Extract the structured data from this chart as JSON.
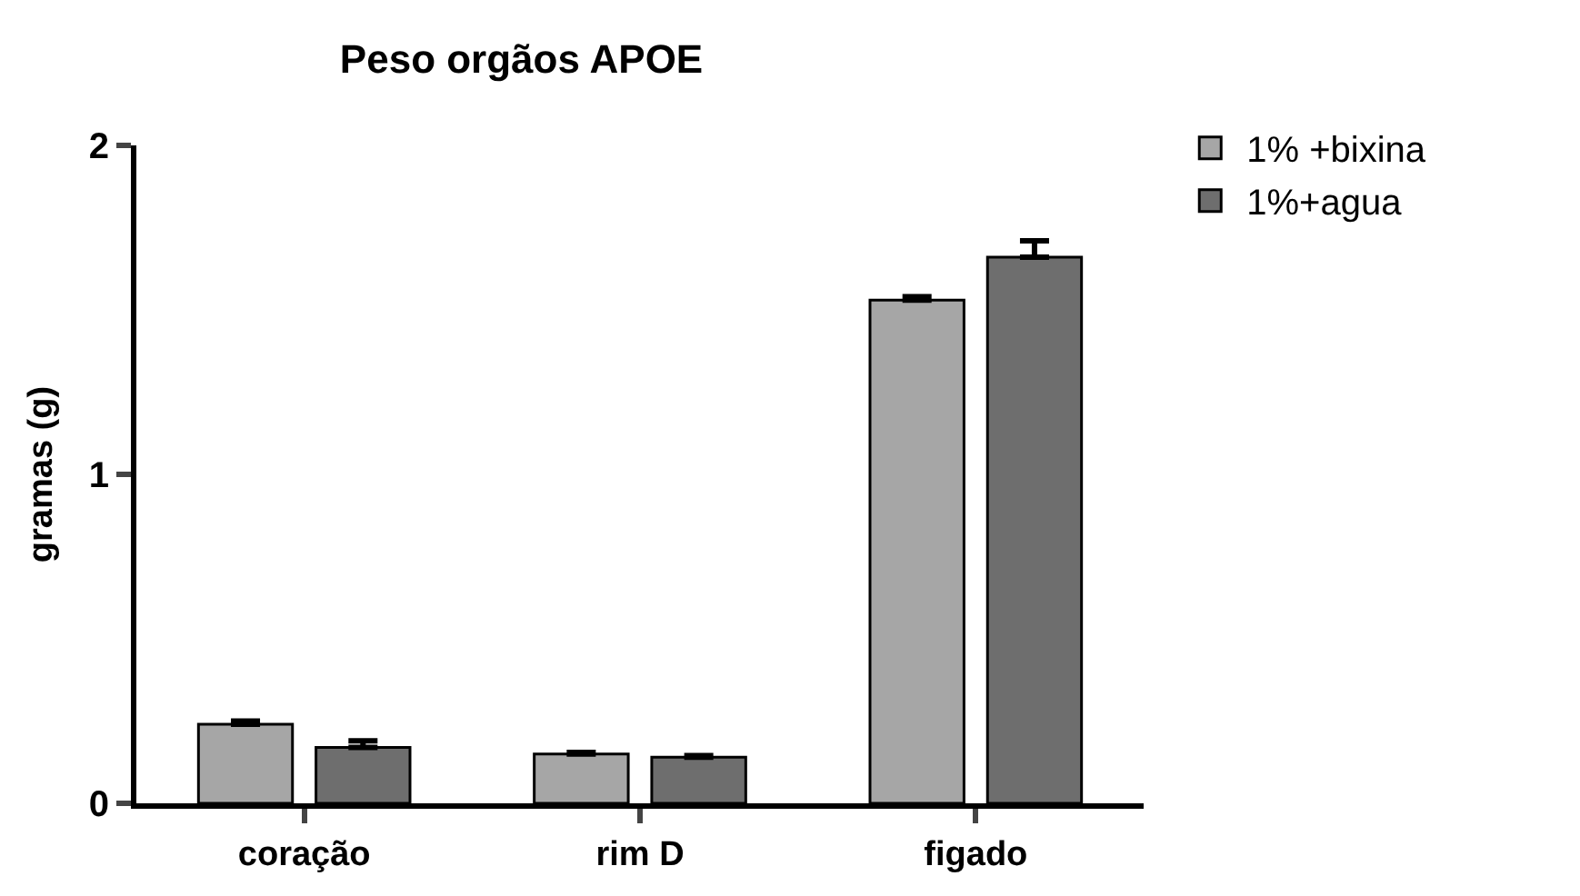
{
  "chart_data": {
    "type": "bar",
    "title": "Peso orgãos APOE",
    "ylabel": "gramas (g)",
    "categories": [
      "coração",
      "rim D",
      "figado"
    ],
    "series": [
      {
        "name": "1% +bixina",
        "color": "#a6a6a6",
        "values": [
          0.24,
          0.15,
          1.53
        ],
        "errors": [
          [
            0.24,
            0.25
          ],
          [
            0.15,
            0.155
          ],
          [
            1.53,
            1.54
          ]
        ]
      },
      {
        "name": "1%+agua",
        "color": "#6e6e6e",
        "values": [
          0.17,
          0.14,
          1.66
        ],
        "errors": [
          [
            0.17,
            0.19
          ],
          [
            0.14,
            0.145
          ],
          [
            1.66,
            1.71
          ]
        ]
      }
    ],
    "ylim": [
      0,
      2
    ],
    "yticks": [
      0,
      1,
      2
    ],
    "legend": "top right"
  }
}
